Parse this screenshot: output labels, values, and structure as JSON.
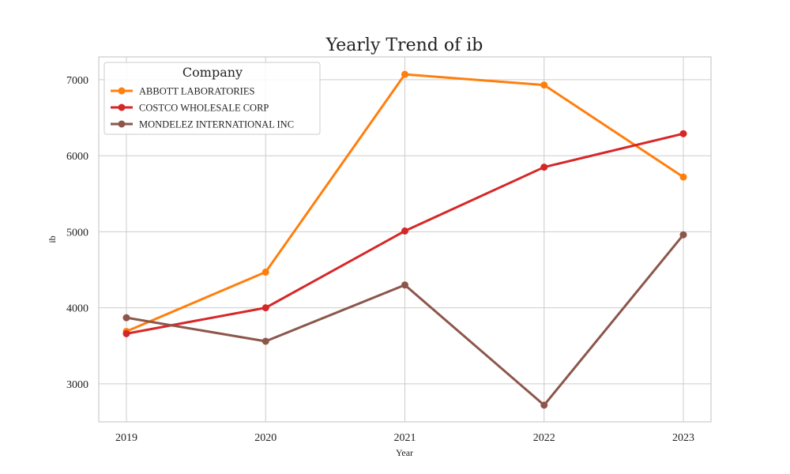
{
  "chart_data": {
    "type": "line",
    "title": "Yearly Trend of ib",
    "xlabel": "Year",
    "ylabel": "ib",
    "x": [
      "2019",
      "2020",
      "2021",
      "2022",
      "2023"
    ],
    "ylim": [
      2500,
      7300
    ],
    "yticks": [
      3000,
      4000,
      5000,
      6000,
      7000
    ],
    "grid": true,
    "legend": {
      "title": "Company",
      "placement": "top-left"
    },
    "series": [
      {
        "name": "ABBOTT LABORATORIES",
        "color": "#ff7f0e",
        "values": [
          3690,
          4470,
          7070,
          6930,
          5720
        ]
      },
      {
        "name": "COSTCO WHOLESALE CORP",
        "color": "#d62728",
        "values": [
          3660,
          4000,
          5010,
          5850,
          6290
        ]
      },
      {
        "name": "MONDELEZ INTERNATIONAL INC",
        "color": "#8c564b",
        "values": [
          3870,
          3560,
          4300,
          2720,
          4960
        ]
      }
    ]
  }
}
